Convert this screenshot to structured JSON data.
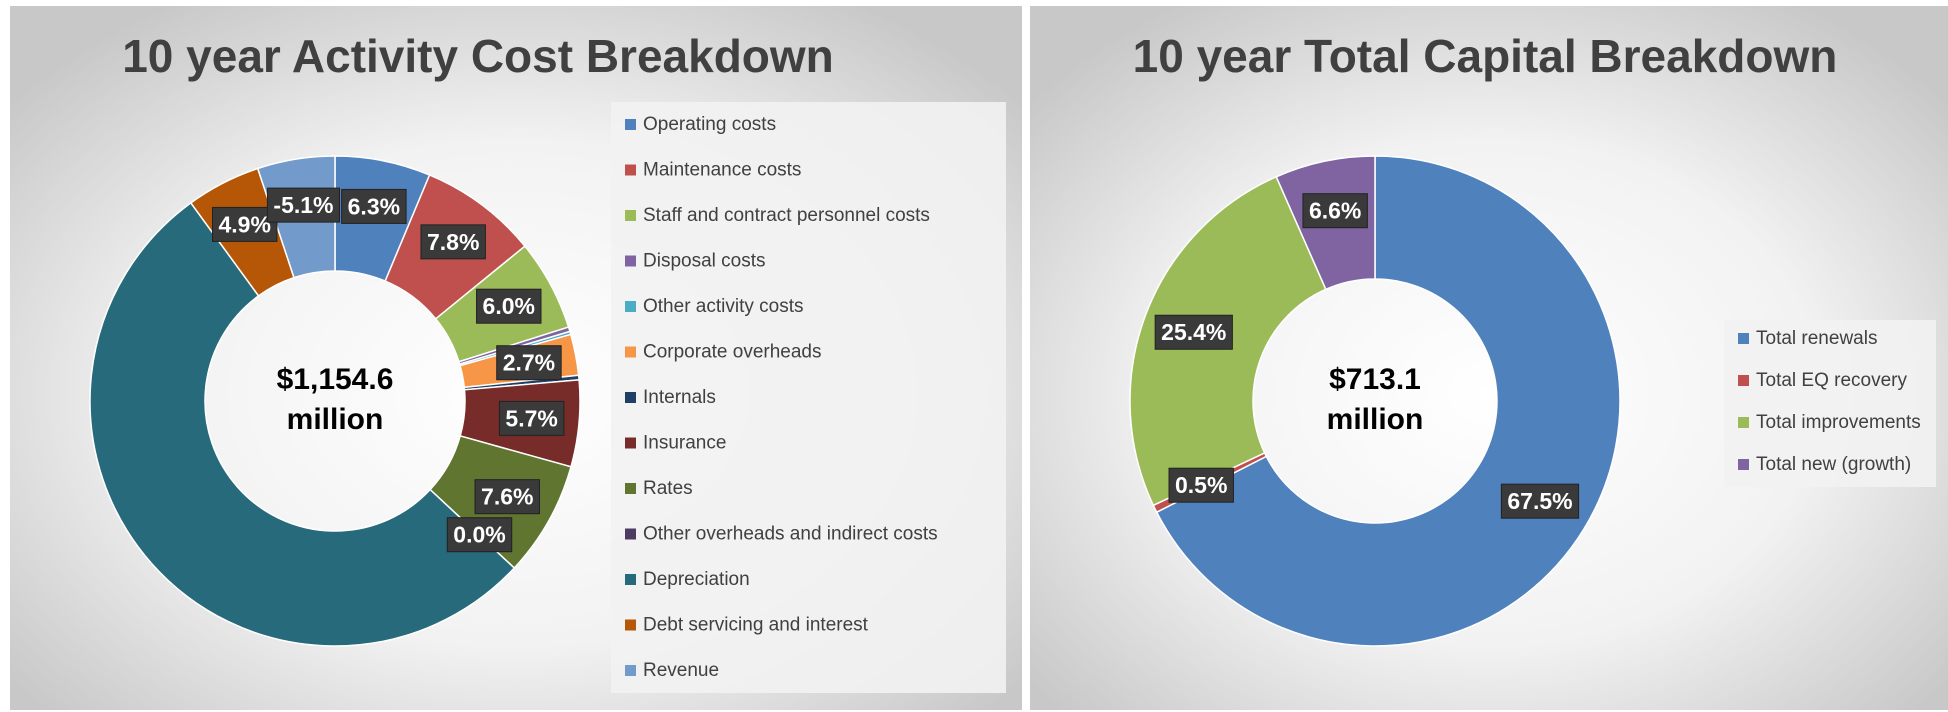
{
  "chart_data": [
    {
      "type": "donut",
      "title": "10 year Activity Cost Breakdown",
      "center_label": [
        "$1,154.6",
        "million"
      ],
      "categories": [
        "Operating costs",
        "Maintenance costs",
        "Staff and contract personnel costs",
        "Disposal costs",
        "Other activity costs",
        "Corporate overheads",
        "Internals",
        "Insurance",
        "Rates",
        "Other overheads and indirect costs",
        "Depreciation",
        "Debt servicing and interest",
        "Revenue"
      ],
      "values": [
        6.3,
        7.8,
        6.0,
        0.3,
        0.2,
        2.7,
        0.3,
        5.7,
        7.6,
        0.0,
        53.0,
        4.9,
        -5.1
      ],
      "value_labels": [
        "6.3%",
        "7.8%",
        "6.0%",
        null,
        null,
        "2.7%",
        null,
        "5.7%",
        "7.6%",
        "0.0%",
        null,
        "4.9%",
        "-5.1%"
      ],
      "colors": [
        "#4f81bd",
        "#c0504d",
        "#9bbb59",
        "#8064a2",
        "#4bacc6",
        "#f79646",
        "#1f3f66",
        "#772c2a",
        "#5f7530",
        "#4d3b62",
        "#276a7c",
        "#b65708",
        "#729aca"
      ],
      "legend": "right"
    },
    {
      "type": "donut",
      "title": "10 year Total Capital Breakdown",
      "center_label": [
        "$713.1",
        "million"
      ],
      "categories": [
        "Total renewals",
        "Total EQ recovery",
        "Total improvements",
        "Total new (growth)"
      ],
      "values": [
        67.5,
        0.5,
        25.4,
        6.6
      ],
      "value_labels": [
        "67.5%",
        "0.5%",
        "25.4%",
        "6.6%"
      ],
      "colors": [
        "#4f81bd",
        "#c0504d",
        "#9bbb59",
        "#8064a2"
      ],
      "legend": "right"
    }
  ]
}
